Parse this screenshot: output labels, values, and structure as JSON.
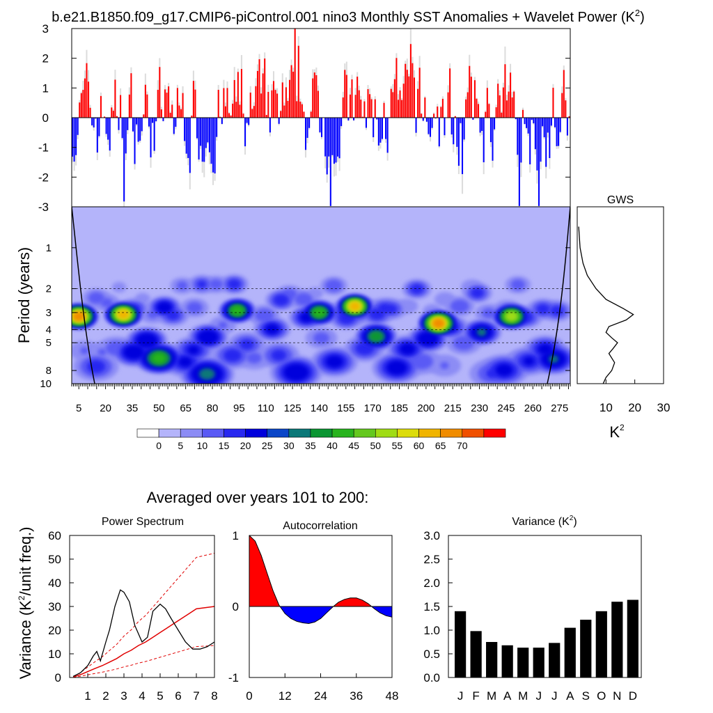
{
  "title": "b.e21.B1850.f09_g17.CMIP6-piControl.001 nino3 Monthly SST Anomalies + Wavelet Power (K",
  "title_sup": "2",
  "title_close": ")",
  "colors": {
    "positive": "#ff0000",
    "negative": "#0000ff",
    "background_blue": "#b4b4fa",
    "bar": "#000000"
  },
  "chart_data": [
    {
      "id": "anomaly_timeseries",
      "type": "bar",
      "ylim": [
        -3,
        3
      ],
      "y_ticks": [
        "3",
        "2",
        "1",
        "0",
        "-1",
        "-2",
        "-3"
      ],
      "x_range_years": [
        1,
        281
      ],
      "description_values": "monthly nino3 SST anomalies, positive red, negative blue"
    },
    {
      "id": "wavelet_power",
      "type": "heatmap",
      "ylabel": "Period (years)",
      "y_ticks": [
        "1",
        "2",
        "3",
        "4",
        "5",
        "8",
        "10"
      ],
      "x_ticks": [
        "5",
        "20",
        "35",
        "50",
        "65",
        "80",
        "95",
        "110",
        "125",
        "140",
        "155",
        "170",
        "185",
        "200",
        "215",
        "230",
        "245",
        "260",
        "275"
      ],
      "x_range": [
        1,
        281
      ],
      "y_range_log_period": [
        0.5,
        10
      ],
      "color_levels": [
        "#ffffff",
        "#b4b4fa",
        "#8c8cf5",
        "#5a5af5",
        "#2828f0",
        "#0000dc",
        "#0a46c8",
        "#0a7878",
        "#0a9632",
        "#28b41e",
        "#64c81e",
        "#a0dc14",
        "#dcdc0a",
        "#f0b400",
        "#f08c00",
        "#f05000",
        "#ff0000"
      ],
      "colorbar_labels": [
        "0",
        "5",
        "10",
        "15",
        "20",
        "25",
        "30",
        "35",
        "40",
        "45",
        "50",
        "55",
        "60",
        "65",
        "70"
      ],
      "hotspots": [
        {
          "year": 5,
          "period": 3.2,
          "peak": 70
        },
        {
          "year": 30,
          "period": 3.1,
          "peak": 65
        },
        {
          "year": 50,
          "period": 6.5,
          "peak": 45
        },
        {
          "year": 77,
          "period": 8.5,
          "peak": 35
        },
        {
          "year": 94,
          "period": 2.9,
          "peak": 45
        },
        {
          "year": 160,
          "period": 2.7,
          "peak": 65
        },
        {
          "year": 207,
          "period": 3.6,
          "peak": 70
        },
        {
          "year": 248,
          "period": 3.2,
          "peak": 55
        },
        {
          "year": 172,
          "period": 4.5,
          "peak": 40
        },
        {
          "year": 140,
          "period": 3.0,
          "peak": 45
        }
      ]
    },
    {
      "id": "global_wavelet_spectrum",
      "type": "line",
      "title": "GWS",
      "xlabel": "K",
      "xlabel_sup": "2",
      "x_ticks": [
        "10",
        "20",
        "30"
      ],
      "xlim": [
        0,
        30
      ],
      "period": [
        0.7,
        1.0,
        1.3,
        1.6,
        2.0,
        2.4,
        2.8,
        3.1,
        3.4,
        3.8,
        4.2,
        4.6,
        5.0,
        5.5,
        6.0,
        7.0,
        8.0,
        9.0,
        10.0
      ],
      "power": [
        0.5,
        1.0,
        2.0,
        3.5,
        6.5,
        10.0,
        16.0,
        19.5,
        17.0,
        11.0,
        10.0,
        12.0,
        14.0,
        12.5,
        11.0,
        13.0,
        12.0,
        10.0,
        9.0
      ]
    },
    {
      "id": "power_spectrum",
      "type": "line",
      "title": "Power Spectrum",
      "ylabel": "Variance (K",
      "ylabel_sup": "2",
      "ylabel_close": "/unit freq.)",
      "xlim": [
        0,
        8
      ],
      "ylim": [
        0,
        60
      ],
      "x_ticks": [
        "1",
        "2",
        "3",
        "4",
        "5",
        "6",
        "7",
        "8"
      ],
      "y_ticks": [
        "0",
        "10",
        "20",
        "30",
        "40",
        "50",
        "60"
      ],
      "x": [
        0.2,
        0.6,
        1.0,
        1.3,
        1.5,
        1.7,
        2.0,
        2.2,
        2.5,
        2.8,
        3.0,
        3.3,
        3.6,
        4.0,
        4.3,
        4.6,
        5.0,
        5.3,
        5.6,
        6.0,
        6.4,
        6.8,
        7.2,
        7.6,
        8.0
      ],
      "y": [
        0.5,
        2,
        5,
        9,
        11,
        7,
        15,
        20,
        30,
        37,
        36,
        32,
        22,
        15,
        17,
        28,
        31,
        29,
        25,
        20,
        15,
        12,
        12,
        13,
        15
      ],
      "red_noise": [
        0.2,
        1.2,
        2.5,
        3.8,
        5.0,
        6.5,
        8.0,
        10.0,
        11.5,
        13.5,
        15.0,
        17.0,
        19.0,
        21.0,
        23.0,
        25.0,
        27.0,
        29.0,
        30.0
      ],
      "red_noise_x": [
        0.2,
        0.6,
        1.0,
        1.4,
        1.8,
        2.2,
        2.6,
        3.0,
        3.4,
        3.8,
        4.2,
        4.6,
        5.0,
        5.4,
        5.8,
        6.2,
        6.6,
        7.0,
        8.0
      ],
      "upper_factor": 1.75,
      "lower_factor": 0.45
    },
    {
      "id": "autocorrelation",
      "type": "area",
      "title": "Autocorrelation",
      "xlim": [
        0,
        48
      ],
      "ylim": [
        -1,
        1
      ],
      "x_ticks": [
        "0",
        "12",
        "24",
        "36",
        "48"
      ],
      "y_ticks": [
        "1",
        "0",
        "-1"
      ],
      "lag": [
        0,
        2,
        4,
        6,
        8,
        10,
        12,
        14,
        16,
        18,
        20,
        22,
        24,
        26,
        28,
        30,
        32,
        34,
        36,
        38,
        40,
        42,
        44,
        46,
        48
      ],
      "r": [
        1.0,
        0.92,
        0.72,
        0.47,
        0.22,
        0.02,
        -0.1,
        -0.17,
        -0.21,
        -0.23,
        -0.24,
        -0.22,
        -0.17,
        -0.09,
        -0.01,
        0.06,
        0.1,
        0.12,
        0.12,
        0.09,
        0.04,
        -0.03,
        -0.09,
        -0.13,
        -0.15
      ]
    },
    {
      "id": "monthly_variance",
      "type": "bar",
      "title": "Variance (K",
      "title_sup": "2",
      "title_close": ")",
      "ylim": [
        0,
        3.0
      ],
      "y_ticks": [
        "3.0",
        "2.5",
        "2.0",
        "1.5",
        "1.0",
        "0.5",
        "0.0"
      ],
      "categories": [
        "J",
        "F",
        "M",
        "A",
        "M",
        "J",
        "J",
        "A",
        "S",
        "O",
        "N",
        "D"
      ],
      "values": [
        1.4,
        0.98,
        0.75,
        0.68,
        0.63,
        0.63,
        0.73,
        1.05,
        1.22,
        1.4,
        1.6,
        1.64
      ]
    }
  ],
  "averaged_label": "Averaged over years 101 to 200:"
}
